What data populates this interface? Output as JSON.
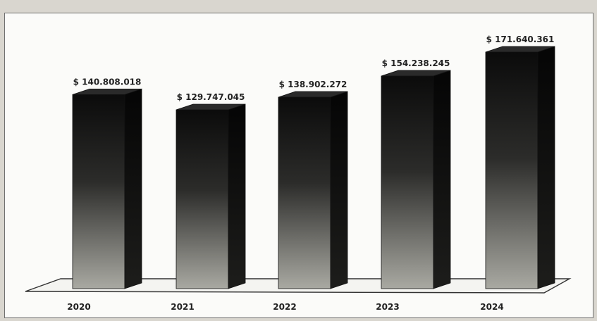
{
  "chart_data": {
    "type": "bar",
    "title": "",
    "xlabel": "",
    "ylabel": "",
    "categories": [
      "2020",
      "2021",
      "2022",
      "2023",
      "2024"
    ],
    "values": [
      140808018,
      129747045,
      138902272,
      154238245,
      171640361
    ],
    "data_labels": [
      "$ 140.808.018",
      "$ 129.747.045",
      "$ 138.902.272",
      "$ 154.238.245",
      "$ 171.640.361"
    ],
    "ylim": [
      0,
      171640361
    ],
    "grid": false,
    "legend": "none",
    "colors": {
      "bar_top": "#0b0b0b",
      "bar_bottom": "#a9a9a2",
      "side": "#111111",
      "cap": "#2a2a2a"
    }
  }
}
